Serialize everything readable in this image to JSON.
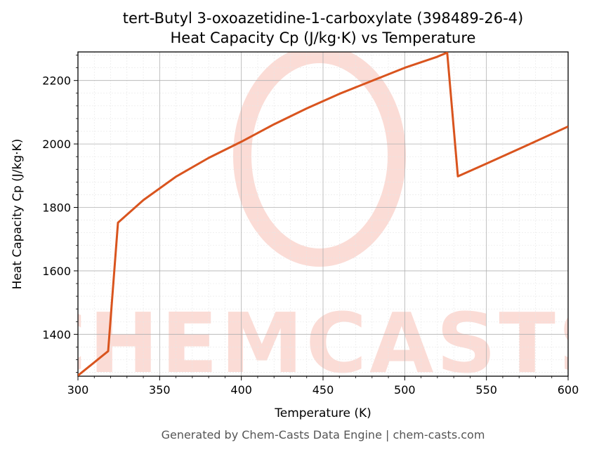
{
  "footer": "Generated by Chem-Casts Data Engine | chem-casts.com",
  "watermark": {
    "text": "CHEMCASTS",
    "color": "#fbdcd6"
  },
  "chart_data": {
    "type": "line",
    "title": "tert-Butyl 3-oxoazetidine-1-carboxylate (398489-26-4)",
    "subtitle": "Heat Capacity Cp (J/kg·K) vs Temperature",
    "xlabel": "Temperature (K)",
    "ylabel": "Heat Capacity Cp (J/kg·K)",
    "xlim": [
      300,
      600
    ],
    "ylim": [
      1268,
      2290
    ],
    "xticks": [
      300,
      350,
      400,
      450,
      500,
      550,
      600
    ],
    "yticks": [
      1400,
      1600,
      1800,
      2000,
      2200
    ],
    "grid": true,
    "line_color": "#d9541e",
    "series": [
      {
        "x": [
          300,
          318.5,
          324.5,
          340,
          360,
          380,
          400,
          420,
          440,
          460,
          480,
          500,
          520,
          526,
          532.5,
          550,
          575,
          600
        ],
        "values": [
          1270,
          1347,
          1752,
          1823,
          1897,
          1956,
          2007,
          2062,
          2112,
          2158,
          2199,
          2240,
          2275,
          2288,
          1898,
          1938,
          1996,
          2055
        ]
      }
    ]
  }
}
